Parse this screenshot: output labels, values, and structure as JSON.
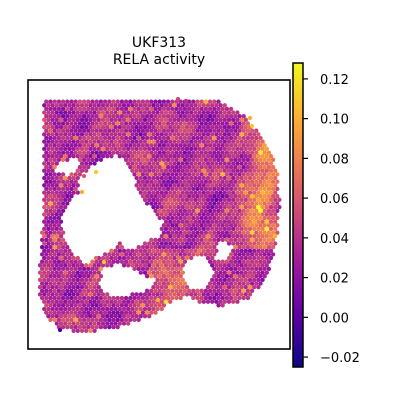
{
  "chart_data": {
    "type": "heatmap",
    "subtype": "spatial-hexbin",
    "title": "UKF313",
    "subtitle": "RELA activity",
    "xlabel": "",
    "ylabel": "",
    "colormap": "plasma",
    "clim": [
      -0.025,
      0.128
    ],
    "colorbar": {
      "ticks": [
        -0.02,
        0.0,
        0.02,
        0.04,
        0.06,
        0.08,
        0.1,
        0.12
      ],
      "tick_labels": [
        "−0.02",
        "0.00",
        "0.02",
        "0.04",
        "0.06",
        "0.08",
        "0.10",
        "0.12"
      ]
    },
    "grid": false,
    "axes_ticks": false
  },
  "colors": {
    "plasma_stops": [
      "#0d0887",
      "#5c01a6",
      "#9c179e",
      "#cc4778",
      "#ed7953",
      "#fdb42f",
      "#f0f921"
    ]
  }
}
